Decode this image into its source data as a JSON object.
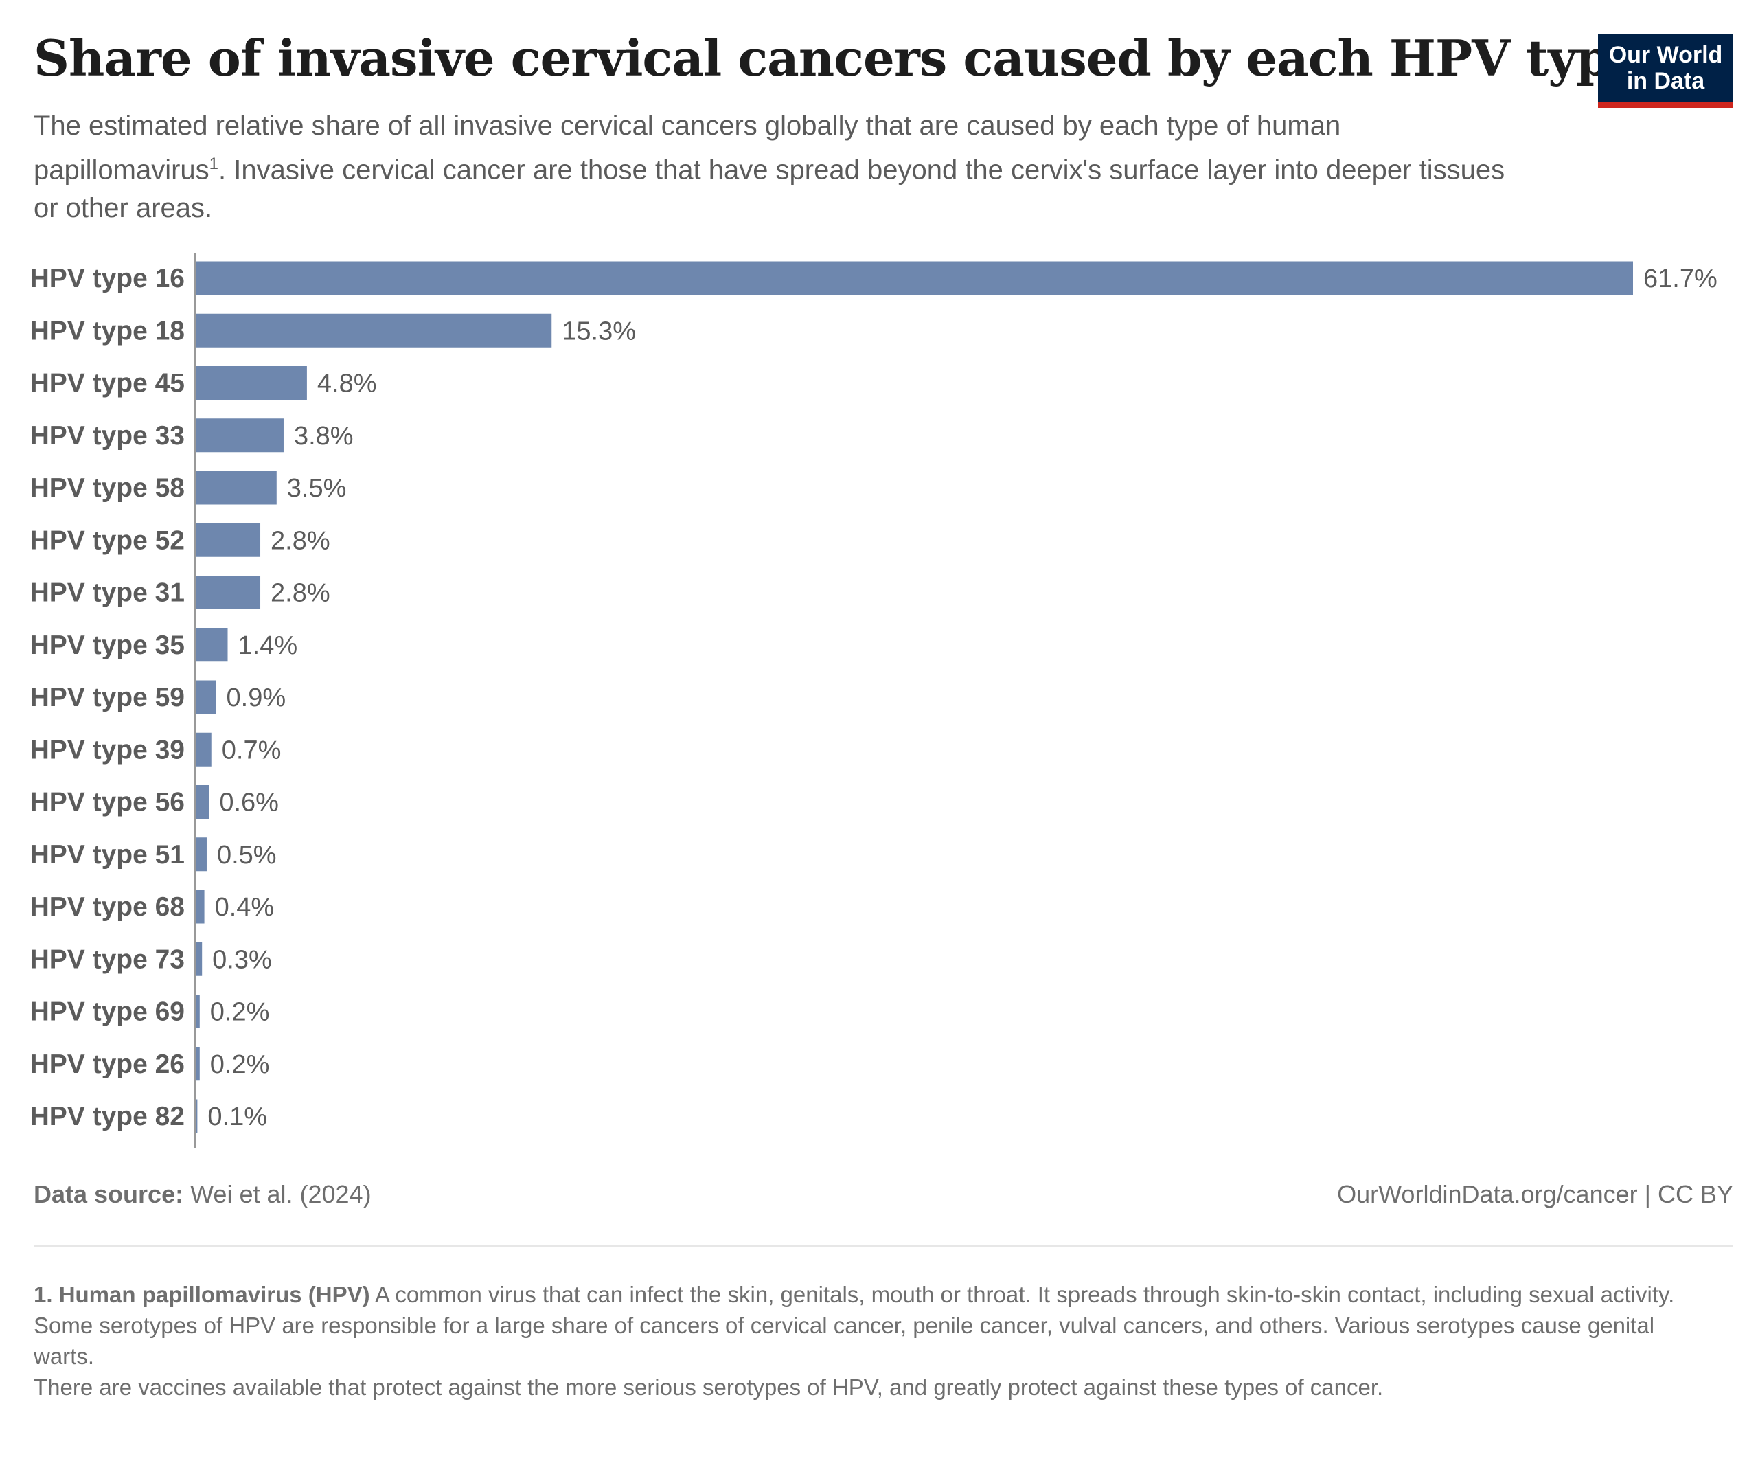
{
  "header": {
    "title": "Share of invasive cervical cancers caused by each HPV type",
    "subtitle_before_sup": "The estimated relative share of all invasive cervical cancers globally that are caused by each type of human papillomavirus",
    "subtitle_sup": "1",
    "subtitle_after_sup": ". Invasive cervical cancer are those that have spread beyond the cervix's surface layer into deeper tissues or other areas.",
    "logo_line1": "Our World",
    "logo_line2": "in Data"
  },
  "colors": {
    "bar": "#6e87ae",
    "logo_bg": "#002147",
    "logo_accent": "#ce261e"
  },
  "chart_data": {
    "type": "bar",
    "orientation": "horizontal",
    "categories": [
      "HPV type 16",
      "HPV type 18",
      "HPV type 45",
      "HPV type 33",
      "HPV type 58",
      "HPV type 52",
      "HPV type 31",
      "HPV type 35",
      "HPV type 59",
      "HPV type 39",
      "HPV type 56",
      "HPV type 51",
      "HPV type 68",
      "HPV type 73",
      "HPV type 69",
      "HPV type 26",
      "HPV type 82"
    ],
    "values": [
      61.7,
      15.3,
      4.8,
      3.8,
      3.5,
      2.8,
      2.8,
      1.4,
      0.9,
      0.7,
      0.6,
      0.5,
      0.4,
      0.3,
      0.2,
      0.2,
      0.1
    ],
    "value_labels": [
      "61.7%",
      "15.3%",
      "4.8%",
      "3.8%",
      "3.5%",
      "2.8%",
      "2.8%",
      "1.4%",
      "0.9%",
      "0.7%",
      "0.6%",
      "0.5%",
      "0.4%",
      "0.3%",
      "0.2%",
      "0.2%",
      "0.1%"
    ],
    "unit": "%",
    "xlim": [
      0,
      61.7
    ],
    "grid": false
  },
  "footer": {
    "source_label": "Data source:",
    "source_value": "Wei et al. (2024)",
    "credit": "OurWorldinData.org/cancer | CC BY",
    "notes": {
      "term": "1. Human papillomavirus (HPV)",
      "definition": " A common virus that can infect the skin, genitals, mouth or throat. It spreads through skin-to-skin contact, including sexual activity.",
      "line2": "Some serotypes of HPV are responsible for a large share of cancers of cervical cancer, penile cancer, vulval cancers, and others. Various serotypes cause genital warts.",
      "line3": "There are vaccines available that protect against the more serious serotypes of HPV, and greatly protect against these types of cancer."
    }
  }
}
